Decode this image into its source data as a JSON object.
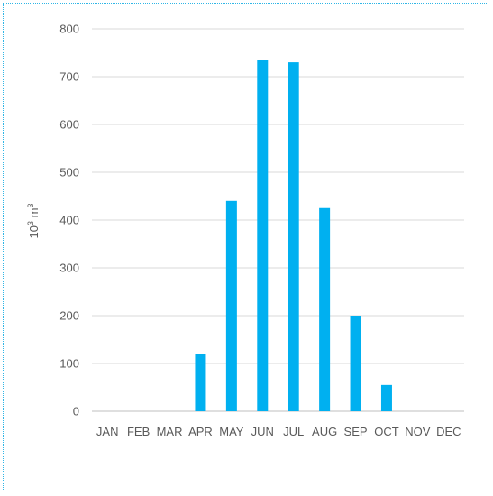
{
  "chart_data": {
    "type": "bar",
    "categories": [
      "JAN",
      "FEB",
      "MAR",
      "APR",
      "MAY",
      "JUN",
      "JUL",
      "AUG",
      "SEP",
      "OCT",
      "NOV",
      "DEC"
    ],
    "values": [
      0,
      0,
      0,
      120,
      440,
      735,
      730,
      425,
      200,
      55,
      0,
      0
    ],
    "title": "",
    "xlabel": "",
    "ylabel": {
      "base": "10",
      "exponent_1": "3",
      "unit": " m",
      "exponent_2": "3"
    },
    "ylim": [
      0,
      800
    ],
    "yticks": [
      0,
      100,
      200,
      300,
      400,
      500,
      600,
      700,
      800
    ],
    "grid": true,
    "bar_color": "#00b0f0",
    "grid_color": "#d9d9d9",
    "frame_color": "#2fb6e6"
  }
}
